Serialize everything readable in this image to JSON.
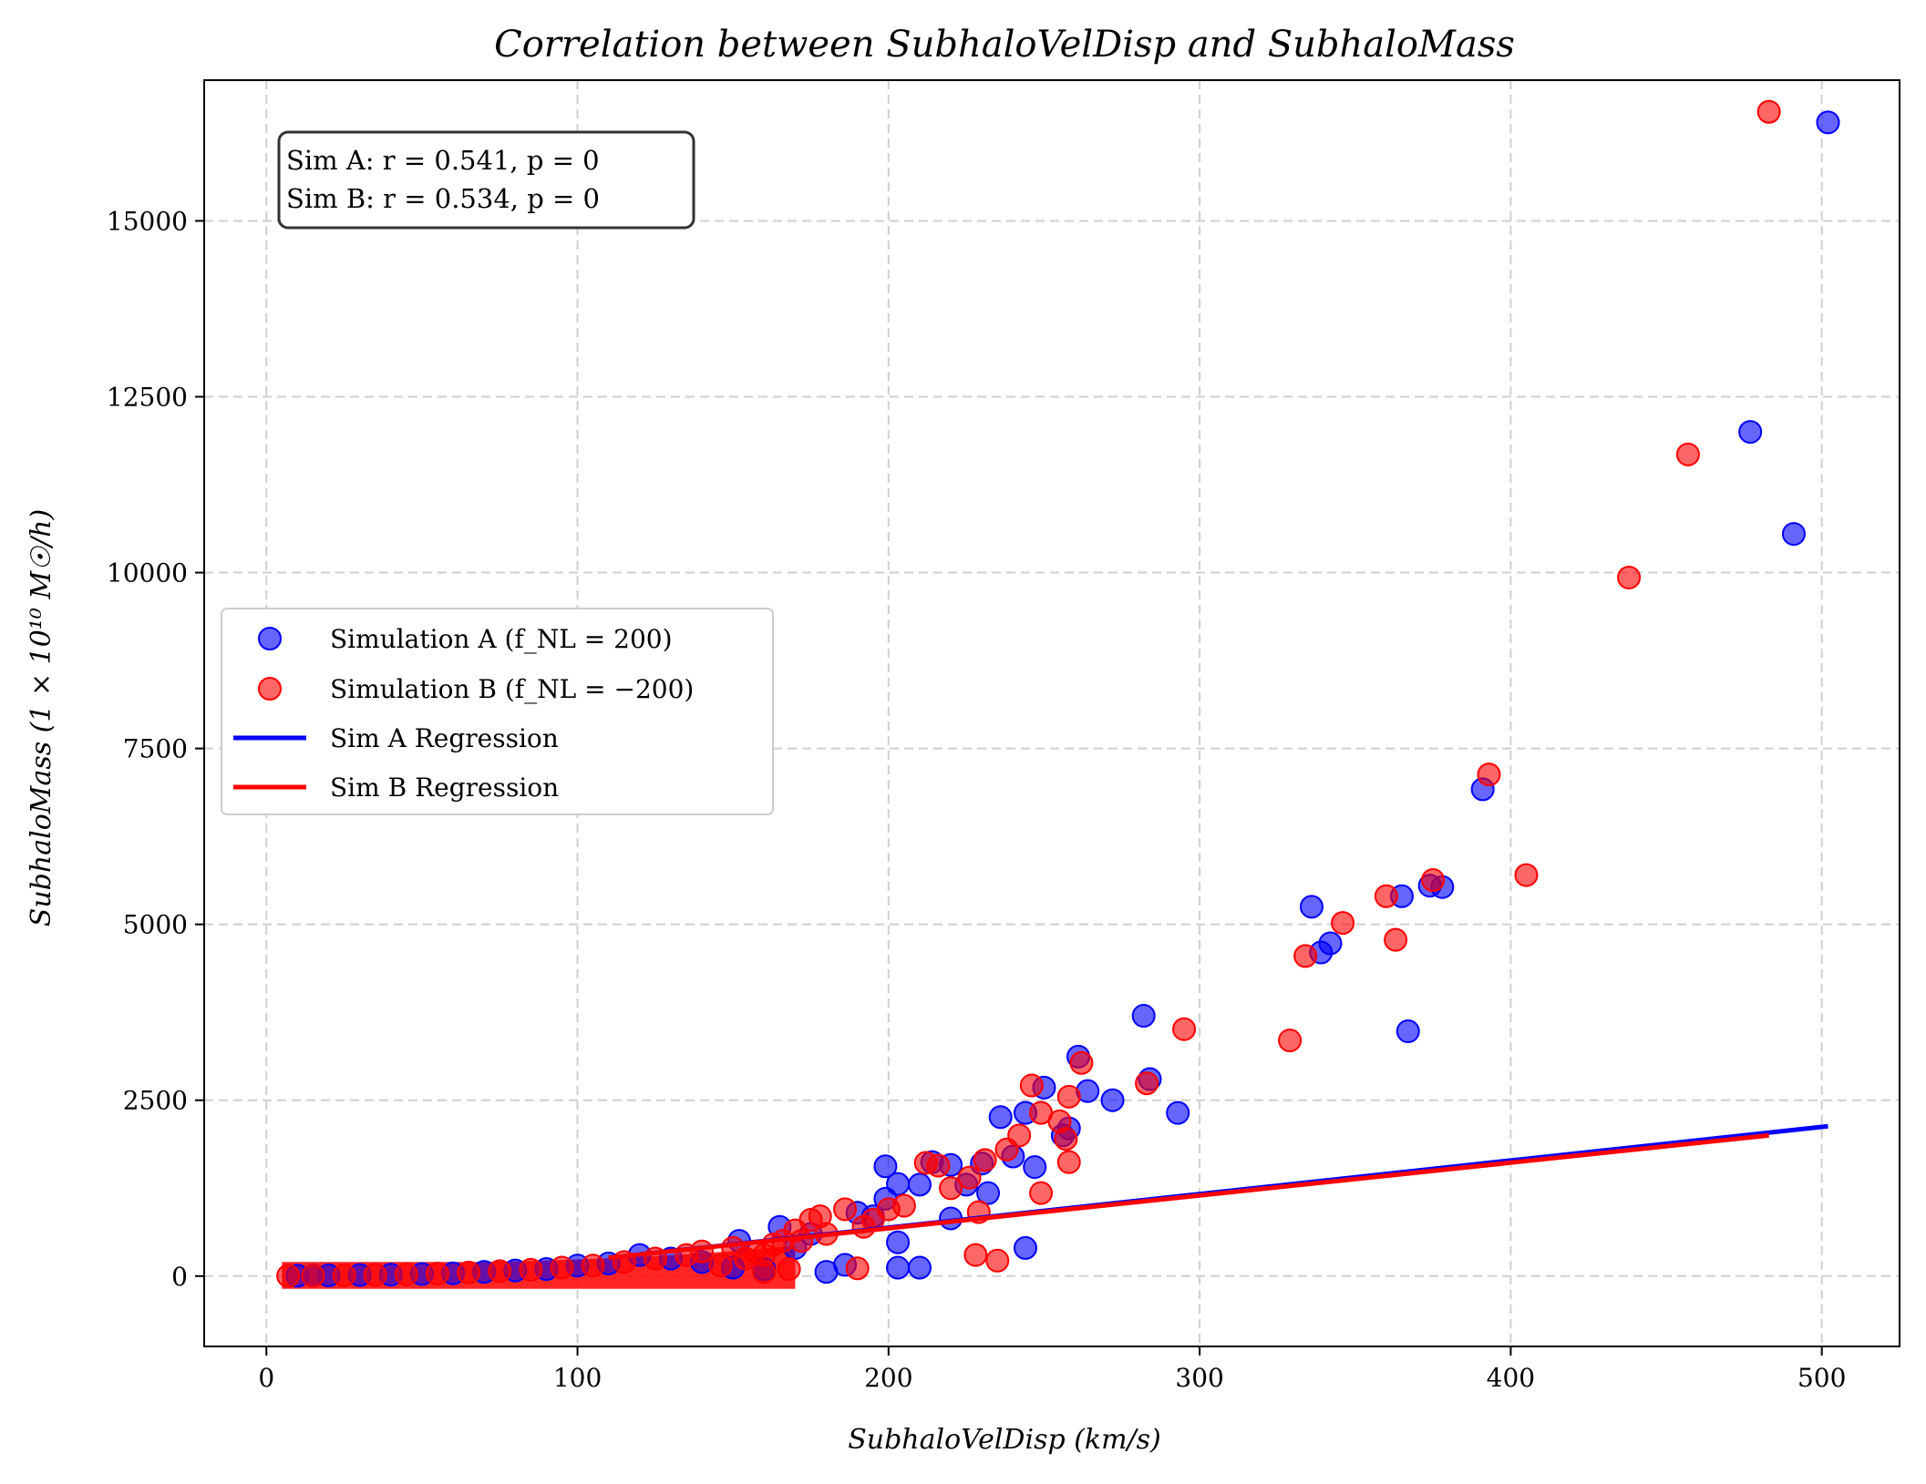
{
  "chart_data": {
    "type": "scatter",
    "title": "Correlation between SubhaloVelDisp and SubhaloMass",
    "xlabel": "SubhaloVelDisp (km/s)",
    "ylabel": "SubhaloMass (1 × 10¹⁰ M☉/h)",
    "xlim": [
      -20,
      525
    ],
    "ylim": [
      -1000,
      17000
    ],
    "xticks": [
      0,
      100,
      200,
      300,
      400,
      500
    ],
    "yticks": [
      0,
      2500,
      5000,
      7500,
      10000,
      12500,
      15000
    ],
    "grid": true,
    "legend_position": "center-left",
    "stats_box": [
      "Sim A: r = 0.541, p = 0",
      "Sim B: r = 0.534, p = 0"
    ],
    "series": [
      {
        "name": "Simulation A (f_NL = 200)",
        "kind": "scatter",
        "color": "#0000ff",
        "points": [
          [
            502,
            16400
          ],
          [
            477,
            12000
          ],
          [
            491,
            10550
          ],
          [
            391,
            6920
          ],
          [
            378,
            5530
          ],
          [
            374,
            5550
          ],
          [
            365,
            5400
          ],
          [
            367,
            3480
          ],
          [
            336,
            5250
          ],
          [
            339,
            4600
          ],
          [
            342,
            4730
          ],
          [
            282,
            3700
          ],
          [
            284,
            2800
          ],
          [
            293,
            2320
          ],
          [
            272,
            2500
          ],
          [
            264,
            2630
          ],
          [
            261,
            3120
          ],
          [
            250,
            2680
          ],
          [
            236,
            2260
          ],
          [
            244,
            2320
          ],
          [
            247,
            1550
          ],
          [
            244,
            400
          ],
          [
            220,
            1580
          ],
          [
            220,
            820
          ],
          [
            214,
            1620
          ],
          [
            210,
            1300
          ],
          [
            203,
            1310
          ],
          [
            199,
            1560
          ],
          [
            199,
            1100
          ],
          [
            203,
            480
          ],
          [
            203,
            120
          ],
          [
            210,
            120
          ],
          [
            186,
            160
          ],
          [
            180,
            60
          ],
          [
            165,
            700
          ],
          [
            152,
            500
          ],
          [
            160,
            100
          ],
          [
            150,
            120
          ],
          [
            120,
            300
          ],
          [
            100,
            150
          ],
          [
            80,
            80
          ],
          [
            60,
            40
          ],
          [
            40,
            20
          ],
          [
            20,
            10
          ],
          [
            10,
            5
          ],
          [
            230,
            1600
          ],
          [
            225,
            1300
          ],
          [
            232,
            1180
          ],
          [
            240,
            1700
          ],
          [
            256,
            2000
          ],
          [
            258,
            2100
          ],
          [
            170,
            400
          ],
          [
            175,
            600
          ],
          [
            190,
            900
          ],
          [
            195,
            850
          ],
          [
            140,
            200
          ],
          [
            130,
            250
          ],
          [
            110,
            180
          ],
          [
            90,
            100
          ],
          [
            70,
            60
          ],
          [
            50,
            30
          ],
          [
            30,
            15
          ],
          [
            15,
            8
          ]
        ]
      },
      {
        "name": "Simulation B (f_NL = −200)",
        "kind": "scatter",
        "color": "#ff0000",
        "points": [
          [
            483,
            16550
          ],
          [
            457,
            11680
          ],
          [
            438,
            9930
          ],
          [
            393,
            7130
          ],
          [
            405,
            5700
          ],
          [
            375,
            5630
          ],
          [
            360,
            5400
          ],
          [
            363,
            4780
          ],
          [
            346,
            5020
          ],
          [
            334,
            4550
          ],
          [
            329,
            3350
          ],
          [
            295,
            3510
          ],
          [
            283,
            2740
          ],
          [
            262,
            3030
          ],
          [
            258,
            2550
          ],
          [
            246,
            2710
          ],
          [
            249,
            2320
          ],
          [
            255,
            2200
          ],
          [
            257,
            1950
          ],
          [
            258,
            1620
          ],
          [
            249,
            1180
          ],
          [
            229,
            910
          ],
          [
            228,
            300
          ],
          [
            235,
            220
          ],
          [
            216,
            1570
          ],
          [
            212,
            1610
          ],
          [
            205,
            1000
          ],
          [
            200,
            950
          ],
          [
            195,
            800
          ],
          [
            192,
            700
          ],
          [
            190,
            110
          ],
          [
            186,
            950
          ],
          [
            178,
            850
          ],
          [
            175,
            800
          ],
          [
            170,
            650
          ],
          [
            166,
            500
          ],
          [
            160,
            300
          ],
          [
            154,
            250
          ],
          [
            150,
            400
          ],
          [
            146,
            150
          ],
          [
            140,
            350
          ],
          [
            135,
            300
          ],
          [
            125,
            250
          ],
          [
            115,
            200
          ],
          [
            105,
            150
          ],
          [
            95,
            120
          ],
          [
            85,
            90
          ],
          [
            75,
            70
          ],
          [
            65,
            50
          ],
          [
            55,
            35
          ],
          [
            45,
            25
          ],
          [
            35,
            15
          ],
          [
            25,
            10
          ],
          [
            15,
            6
          ],
          [
            7,
            3
          ],
          [
            238,
            1800
          ],
          [
            242,
            2000
          ],
          [
            231,
            1650
          ],
          [
            226,
            1400
          ],
          [
            220,
            1250
          ],
          [
            180,
            600
          ],
          [
            172,
            500
          ],
          [
            163,
            450
          ],
          [
            157,
            350
          ],
          [
            168,
            100
          ],
          [
            160,
            60
          ]
        ]
      },
      {
        "name": "Sim A Regression",
        "kind": "line",
        "color": "#0000ff",
        "x": [
          110,
          502
        ],
        "y": [
          260,
          2130
        ]
      },
      {
        "name": "Sim B Regression",
        "kind": "line",
        "color": "#ff0000",
        "x": [
          110,
          483
        ],
        "y": [
          260,
          2000
        ]
      }
    ]
  }
}
